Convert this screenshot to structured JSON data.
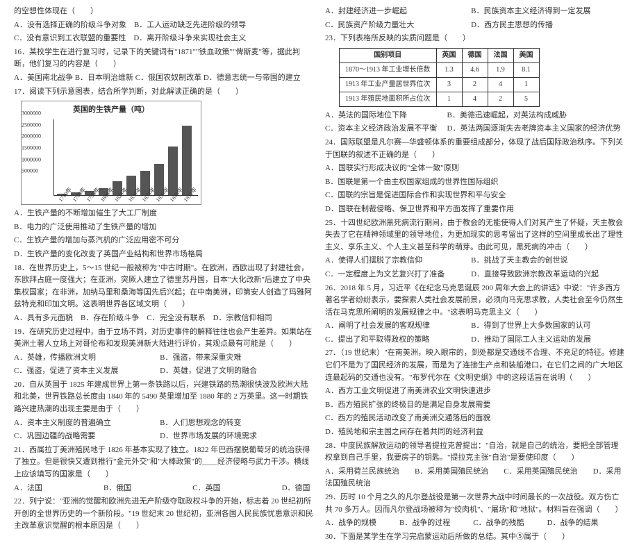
{
  "left": {
    "l1": "的空想性体现在（　　）",
    "l2": "A．没有选择正确的阶级斗争对象　B．工人运动缺乏先进阶级的领导",
    "l3": "C．没有意识到工农联盟的重要性　D．离开阶级斗争来实现社会主义",
    "l4": "16．某校学生在进行复习时，记录下的关键词有\"1871\"\"铁血政策\"\"俾斯麦\"等，据此判断，他们复习的内容是（　　）",
    "l5": "A．美国南北战争 B．日本明治维新 C．俄国农奴制改革 D．德意志统一与帝国的建立",
    "l6": "17．阅读下列示意图表，结合所学判断，对此解读正确的是（　　）",
    "chart": {
      "title": "英国的生铁产量（吨）",
      "ylabels": [
        "3000000",
        "2500000",
        "2000000",
        "1500000",
        "1000000",
        "500000"
      ],
      "xlabels": [
        "1740年",
        "1788年",
        "1796年",
        "1806年",
        "1825年",
        "1830年",
        "1835年",
        "1839年",
        "1848年",
        "1852年"
      ],
      "values": [
        2,
        4,
        6,
        10,
        20,
        28,
        35,
        45,
        70,
        100
      ],
      "bar_color": "#555555",
      "max_height": 100
    },
    "l7": "A．生铁产量的不断增加催生了大工厂制度",
    "l8": "B．电力的广泛使用推动了生铁产量的增加",
    "l9": "C．生铁产量的增加与蒸汽机的广泛应用密不可分",
    "l10": "D．生铁产量的变化改变了英国产业结构和世界市场格局",
    "l11": "18．在世界历史上，5～15 世纪一般被称为\"中古时期\"。在欧洲，西欧出现了封建社会，东欧拜占庭一度强大；在亚洲，突厥人建立了德里苏丹国，日本\"大化改新\"后建立了中央集权国家；在非洲，加纳马里和桑海等国先后兴起；在中南美洲，印第安人创造了玛雅阿兹特克和印加文明。这表明世界各区域文明（　　）",
    "l12": "A．具有多元面貌　B．存在阶级斗争　C．完全没有联系　D．宗教信仰相同",
    "l13": "19．在研究历史过程中，由于立场不同，对历史事件的解释往往也会产生差异。如果站在美洲土著人立场上对哥伦布和发现美洲新大陆进行评价，其观点最有可能是（　　）",
    "l14a": "A．英雄，传播欧洲文明",
    "l14b": "B．强盗，带来深重灾难",
    "l15a": "C．强盗，促进了资本主义发展",
    "l15b": "D．英雄，促进了文明的融合",
    "l16": "20．自从英国于 1825 年建成世界上第一条铁路以后，兴建铁路的热潮很快波及欧洲大陆和北美，世界铁路总长度由 1840 年的 5490 英里增加至 1880 年的 2 万英里。这一时期铁路兴建热潮的出现主要是由于（　　）",
    "l17a": "A．资本主义制度的普遍确立",
    "l17b": "B．人们思想观念的转变",
    "l18a": "C．巩固边疆的战略需要",
    "l18b": "D．世界市场发展的环境需求",
    "l19": "21．西属拉丁美洲殖民地于 1826 年基本实现了独立。1822 年巴西摆脱葡萄牙的统治获得了独立。但是很快又遭到推行\"金元外交\"和\"大棒政策\"的____经济侵略与武力干涉。横线上应该填写的国家是（　　）",
    "l20": "A．法国　　　　　　　　B．俄国　　　　　　　　C．英国　　　　　　　　D．德国",
    "l21": "22．列宁说：\"亚洲的觉醒和欧洲先进无产阶级夺取政权斗争的开始，标志着 20 世纪初所开创的全世界历史的一个新阶段。\"19 世纪末 20 世纪初，亚洲各国人民民族忧患意识和民主改革意识觉醒的根本原因是（　　）"
  },
  "right": {
    "l1a": "A．封建经济进一步崛起",
    "l1b": "B．民族资本主义经济得到一定发展",
    "l2a": "C．民族资产阶级力量壮大",
    "l2b": "D．西方民主思想的传播",
    "l3": "23．下列表格所反映的实质问题是（　　）",
    "table": {
      "headers": [
        "国别项目",
        "英国",
        "德国",
        "法国",
        "美国"
      ],
      "rows": [
        [
          "1870～1913 年工业增长倍数",
          "1.3",
          "4.6",
          "1.9",
          "8.1"
        ],
        [
          "1913 年工业产量居世界位次",
          "3",
          "2",
          "4",
          "1"
        ],
        [
          "1913 年殖民地面积所占位次",
          "1",
          "4",
          "2",
          "5"
        ]
      ]
    },
    "l4a": "A．英法的国际地位下降",
    "l4b": "B．美德迅速崛起，对英法构成威胁",
    "l5a": "C．资本主义经济政治发展不平衡",
    "l5b": "D．英法两国逐渐失去老牌资本主义国家的经济优势",
    "l6": "24．国际联盟是凡尔赛—华盛顿体系的重要组成部分，体现了战后国际政治秩序。下列关于国联的叙述不正确的是（　　）",
    "l7": "A．国联实行形成决议的\"全体一致\"原则",
    "l8": "B．国联是第一个由主权国家组成的世界性国际组织",
    "l9": "C．国联的宗旨是促进国际合作和实现世界和平与安全",
    "l10": "D．国联在制裁侵略、保卫世界和平方面发挥了重要作用",
    "l11": "25．十四世纪欧洲黑死病流行期间，由于教会的无能使得人们对其产生了怀疑，天主教会失去了它在精神领域里的领导地位，为更加现实的思考留出了这样的空间里成长出了理性主义、享乐主义、个人主义甚至科学的萌芽。由此可见，黑死病的冲击（　　）",
    "l12a": "A．使得人们摆脱了宗教信仰",
    "l12b": "B．挑战了天主教会的创世说",
    "l13a": "C．一定程度上为文艺复兴打了准备",
    "l13b": "D．直接导致欧洲宗教改革运动的兴起",
    "l14": "26．2018 年 5 月，习近平《在纪念马克思诞辰 200 周年大会上的讲话》中说：\"许多西方著名学者纷纷表示，要探索人类社会发展前景，必须向马克思求教，人类社会至今仍然生活在马克思所阐明的发展规律之中。\"这表明马克思主义（　　）",
    "l15a": "A．阐明了社会发展的客观规律",
    "l15b": "B．得到了世界上大多数国家的认可",
    "l16a": "C．提出了和平取得政权的策略",
    "l16b": "D．推动了国际工人主义运动的发展",
    "l17": "27．（19 世纪末）\"在南美洲，映入眼帘的，到处都是交通线不合理、不充足的特征。修建它们不是为了国民经济的发展，而是为了连接生产点和装船港口，在它们之间的广大地区连最起码的交通也没有。\"布罗代尔在《文明史纲》中的这段话旨在说明（　　）",
    "l18": "A．西方工业文明促进了南美洲农业文明快速进步",
    "l19": "B．西方殖民扩张的终极目的是满足自身发展需要",
    "l20": "C．西方的殖民活动改变了南美洲交通落后的面貌",
    "l21": "D．殖民地和宗主国之间存在着共同的经济利益",
    "l22": "28．中度民族解放运动的领导者提拉克曾提出：\"自治，就是自己的统治，要把全部管理权拿到自己手里，我要房子的钥匙。\"提拉克主张\"自治\"是要使印度（　　）",
    "l23": "A．采用荷兰民族统治　　B．采用美国殖民统治　　C．采用英国殖民统治　　D．采用法国殖民统治",
    "l24": "29．历时 10 个月之久的凡尔登战役是第一次世界大战中时间最长的一次战役。双方伤亡共 70 多万人。因而凡尔登战场被称为\"绞肉机\"、\"屠场\"和\"地狱\"。材料旨在强调（　　）",
    "l25": "A．战争的规模　　　B．战争的过程　　　C．战争的残酷　　　D．战争的结果",
    "l26": "30．下面是某学生在学习完启蒙运动后所做的总结。其中⑤属于（　　）"
  }
}
